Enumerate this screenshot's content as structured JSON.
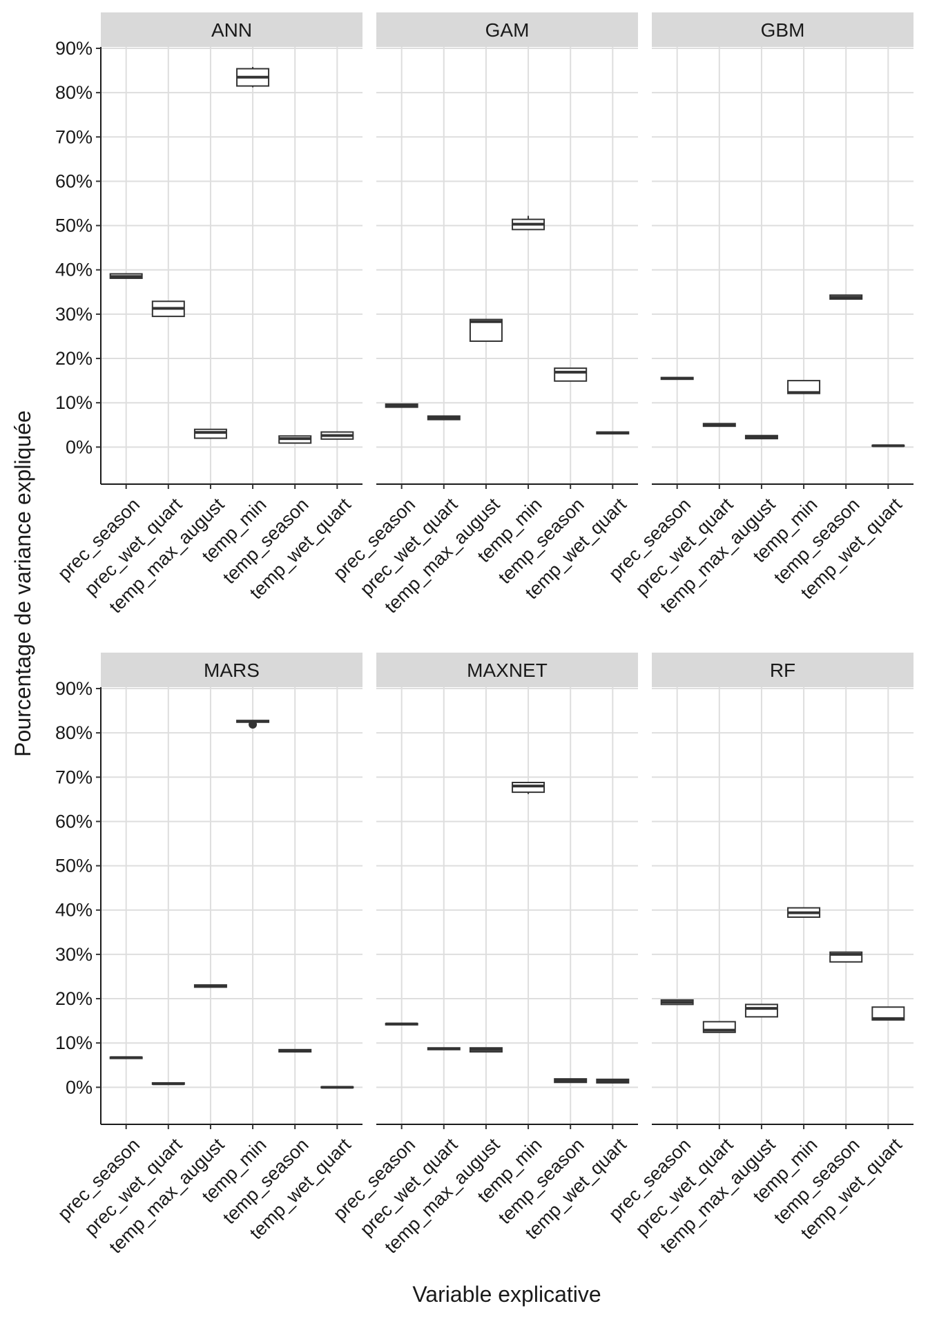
{
  "chart_data": {
    "type": "boxplot",
    "xlabel": "Variable explicative",
    "ylabel": "Pourcentage de variance expliquée",
    "ylim": [
      -0.04,
      0.9
    ],
    "y_ticks": [
      0,
      0.1,
      0.2,
      0.3,
      0.4,
      0.5,
      0.6,
      0.7,
      0.8,
      0.9
    ],
    "y_tick_labels": [
      "0%",
      "10%",
      "20%",
      "30%",
      "40%",
      "50%",
      "60%",
      "70%",
      "80%",
      "90%"
    ],
    "grid": true,
    "categories": [
      "prec_season",
      "prec_wet_quart",
      "temp_max_august",
      "temp_min",
      "temp_season",
      "temp_wet_quart"
    ],
    "panels": [
      {
        "name": "ANN",
        "boxes": [
          {
            "min": 0.38,
            "q1": 0.381,
            "median": 0.385,
            "q3": 0.391,
            "max": 0.392
          },
          {
            "min": 0.294,
            "q1": 0.295,
            "median": 0.313,
            "q3": 0.329,
            "max": 0.33
          },
          {
            "min": 0.019,
            "q1": 0.02,
            "median": 0.033,
            "q3": 0.04,
            "max": 0.041
          },
          {
            "min": 0.812,
            "q1": 0.815,
            "median": 0.835,
            "q3": 0.854,
            "max": 0.858
          },
          {
            "min": 0.008,
            "q1": 0.009,
            "median": 0.019,
            "q3": 0.025,
            "max": 0.026
          },
          {
            "min": 0.017,
            "q1": 0.018,
            "median": 0.026,
            "q3": 0.034,
            "max": 0.035
          }
        ]
      },
      {
        "name": "GAM",
        "boxes": [
          {
            "min": 0.089,
            "q1": 0.09,
            "median": 0.094,
            "q3": 0.097,
            "max": 0.098
          },
          {
            "min": 0.061,
            "q1": 0.062,
            "median": 0.066,
            "q3": 0.07,
            "max": 0.071
          },
          {
            "min": 0.238,
            "q1": 0.239,
            "median": 0.283,
            "q3": 0.288,
            "max": 0.289
          },
          {
            "min": 0.49,
            "q1": 0.491,
            "median": 0.503,
            "q3": 0.514,
            "max": 0.522
          },
          {
            "min": 0.148,
            "q1": 0.149,
            "median": 0.169,
            "q3": 0.178,
            "max": 0.179
          },
          {
            "min": 0.029,
            "q1": 0.03,
            "median": 0.032,
            "q3": 0.034,
            "max": 0.035
          }
        ]
      },
      {
        "name": "GBM",
        "boxes": [
          {
            "min": 0.152,
            "q1": 0.153,
            "median": 0.155,
            "q3": 0.157,
            "max": 0.158
          },
          {
            "min": 0.046,
            "q1": 0.047,
            "median": 0.05,
            "q3": 0.053,
            "max": 0.054
          },
          {
            "min": 0.018,
            "q1": 0.019,
            "median": 0.022,
            "q3": 0.026,
            "max": 0.027
          },
          {
            "min": 0.12,
            "q1": 0.121,
            "median": 0.123,
            "q3": 0.15,
            "max": 0.151
          },
          {
            "min": 0.333,
            "q1": 0.334,
            "median": 0.338,
            "q3": 0.343,
            "max": 0.344
          },
          {
            "min": 0.001,
            "q1": 0.002,
            "median": 0.003,
            "q3": 0.004,
            "max": 0.005
          }
        ]
      },
      {
        "name": "MARS",
        "boxes": [
          {
            "min": 0.064,
            "q1": 0.065,
            "median": 0.067,
            "q3": 0.068,
            "max": 0.069
          },
          {
            "min": 0.006,
            "q1": 0.007,
            "median": 0.008,
            "q3": 0.01,
            "max": 0.011
          },
          {
            "min": 0.225,
            "q1": 0.226,
            "median": 0.229,
            "q3": 0.231,
            "max": 0.232
          },
          {
            "min": 0.823,
            "q1": 0.824,
            "median": 0.826,
            "q3": 0.828,
            "max": 0.829,
            "outliers": [
              0.819
            ]
          },
          {
            "min": 0.079,
            "q1": 0.08,
            "median": 0.082,
            "q3": 0.085,
            "max": 0.086
          },
          {
            "min": -0.002,
            "q1": -0.001,
            "median": 0.0,
            "q3": 0.001,
            "max": 0.002
          }
        ]
      },
      {
        "name": "MAXNET",
        "boxes": [
          {
            "min": 0.14,
            "q1": 0.141,
            "median": 0.143,
            "q3": 0.144,
            "max": 0.145
          },
          {
            "min": 0.084,
            "q1": 0.085,
            "median": 0.087,
            "q3": 0.089,
            "max": 0.09
          },
          {
            "min": 0.079,
            "q1": 0.08,
            "median": 0.085,
            "q3": 0.089,
            "max": 0.09
          },
          {
            "min": 0.662,
            "q1": 0.666,
            "median": 0.68,
            "q3": 0.688,
            "max": 0.689
          },
          {
            "min": 0.01,
            "q1": 0.011,
            "median": 0.015,
            "q3": 0.019,
            "max": 0.02
          },
          {
            "min": 0.009,
            "q1": 0.01,
            "median": 0.014,
            "q3": 0.018,
            "max": 0.019
          }
        ]
      },
      {
        "name": "RF",
        "boxes": [
          {
            "min": 0.186,
            "q1": 0.187,
            "median": 0.192,
            "q3": 0.197,
            "max": 0.198
          },
          {
            "min": 0.123,
            "q1": 0.124,
            "median": 0.129,
            "q3": 0.148,
            "max": 0.149
          },
          {
            "min": 0.158,
            "q1": 0.159,
            "median": 0.178,
            "q3": 0.187,
            "max": 0.188
          },
          {
            "min": 0.383,
            "q1": 0.384,
            "median": 0.394,
            "q3": 0.405,
            "max": 0.406
          },
          {
            "min": 0.282,
            "q1": 0.283,
            "median": 0.3,
            "q3": 0.305,
            "max": 0.306
          },
          {
            "min": 0.151,
            "q1": 0.152,
            "median": 0.155,
            "q3": 0.181,
            "max": 0.182
          }
        ]
      }
    ]
  }
}
